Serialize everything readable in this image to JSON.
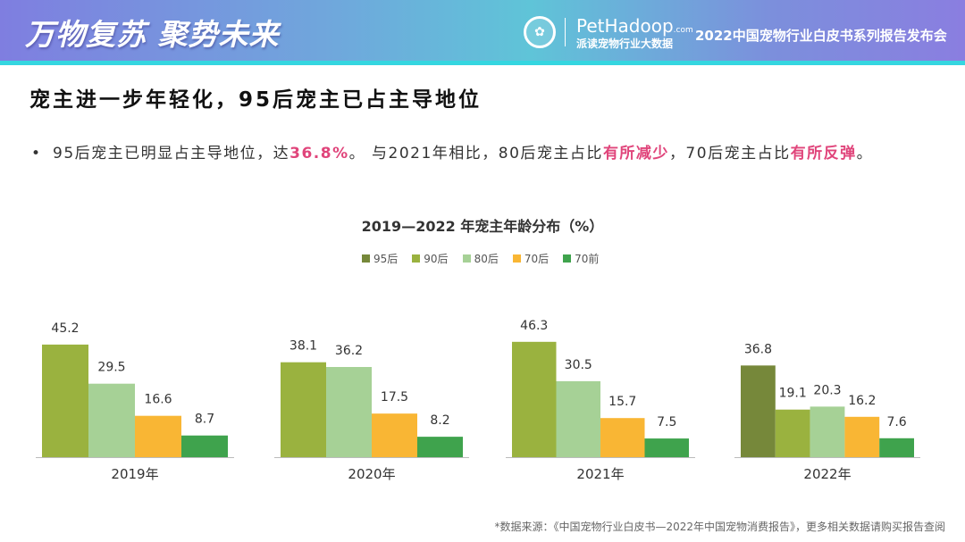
{
  "header": {
    "slogan": "万物复苏 聚势未来",
    "brand": "PetHadoop",
    "brand_suffix": ".com",
    "brand_sub": "派读宠物行业大数据",
    "event": "2022中国宠物行业白皮书系列报告发布会",
    "logo_icon": "pethadoop-seal-logo"
  },
  "title": "宠主进一步年轻化，95后宠主已占主导地位",
  "bullet": {
    "p1": "95后宠主已明显占主导地位，达",
    "h1": "36.8%",
    "p2": "。   与2021年相比，80后宠主占比",
    "h2": "有所减少",
    "p3": "，70后宠主占比",
    "h3": "有所反弹",
    "p4": "。"
  },
  "source": "*数据来源：《中国宠物行业白皮书—2022年中国宠物消费报告》，更多相关数据请购买报告查阅",
  "chart_data": {
    "type": "bar",
    "title": "2019—2022 年宠主年龄分布（%）",
    "legend": [
      {
        "name": "95后",
        "color": "#76883a"
      },
      {
        "name": "90后",
        "color": "#9ab23f"
      },
      {
        "name": "80后",
        "color": "#a6d196"
      },
      {
        "name": "70后",
        "color": "#f9b634"
      },
      {
        "name": "70前",
        "color": "#3fa34d"
      }
    ],
    "groups": [
      {
        "label": "2019年",
        "bars": [
          {
            "series": "90后",
            "value": 45.2
          },
          {
            "series": "80后",
            "value": 29.5
          },
          {
            "series": "70后",
            "value": 16.6
          },
          {
            "series": "70前",
            "value": 8.7
          }
        ]
      },
      {
        "label": "2020年",
        "bars": [
          {
            "series": "90后",
            "value": 38.1
          },
          {
            "series": "80后",
            "value": 36.2
          },
          {
            "series": "70后",
            "value": 17.5
          },
          {
            "series": "70前",
            "value": 8.2
          }
        ]
      },
      {
        "label": "2021年",
        "bars": [
          {
            "series": "90后",
            "value": 46.3
          },
          {
            "series": "80后",
            "value": 30.5
          },
          {
            "series": "70后",
            "value": 15.7
          },
          {
            "series": "70前",
            "value": 7.5
          }
        ]
      },
      {
        "label": "2022年",
        "bars": [
          {
            "series": "95后",
            "value": 36.8
          },
          {
            "series": "90后",
            "value": 19.1
          },
          {
            "series": "80后",
            "value": 20.3
          },
          {
            "series": "70后",
            "value": 16.2
          },
          {
            "series": "70前",
            "value": 7.6
          }
        ]
      }
    ],
    "legend_position": "top-center"
  }
}
